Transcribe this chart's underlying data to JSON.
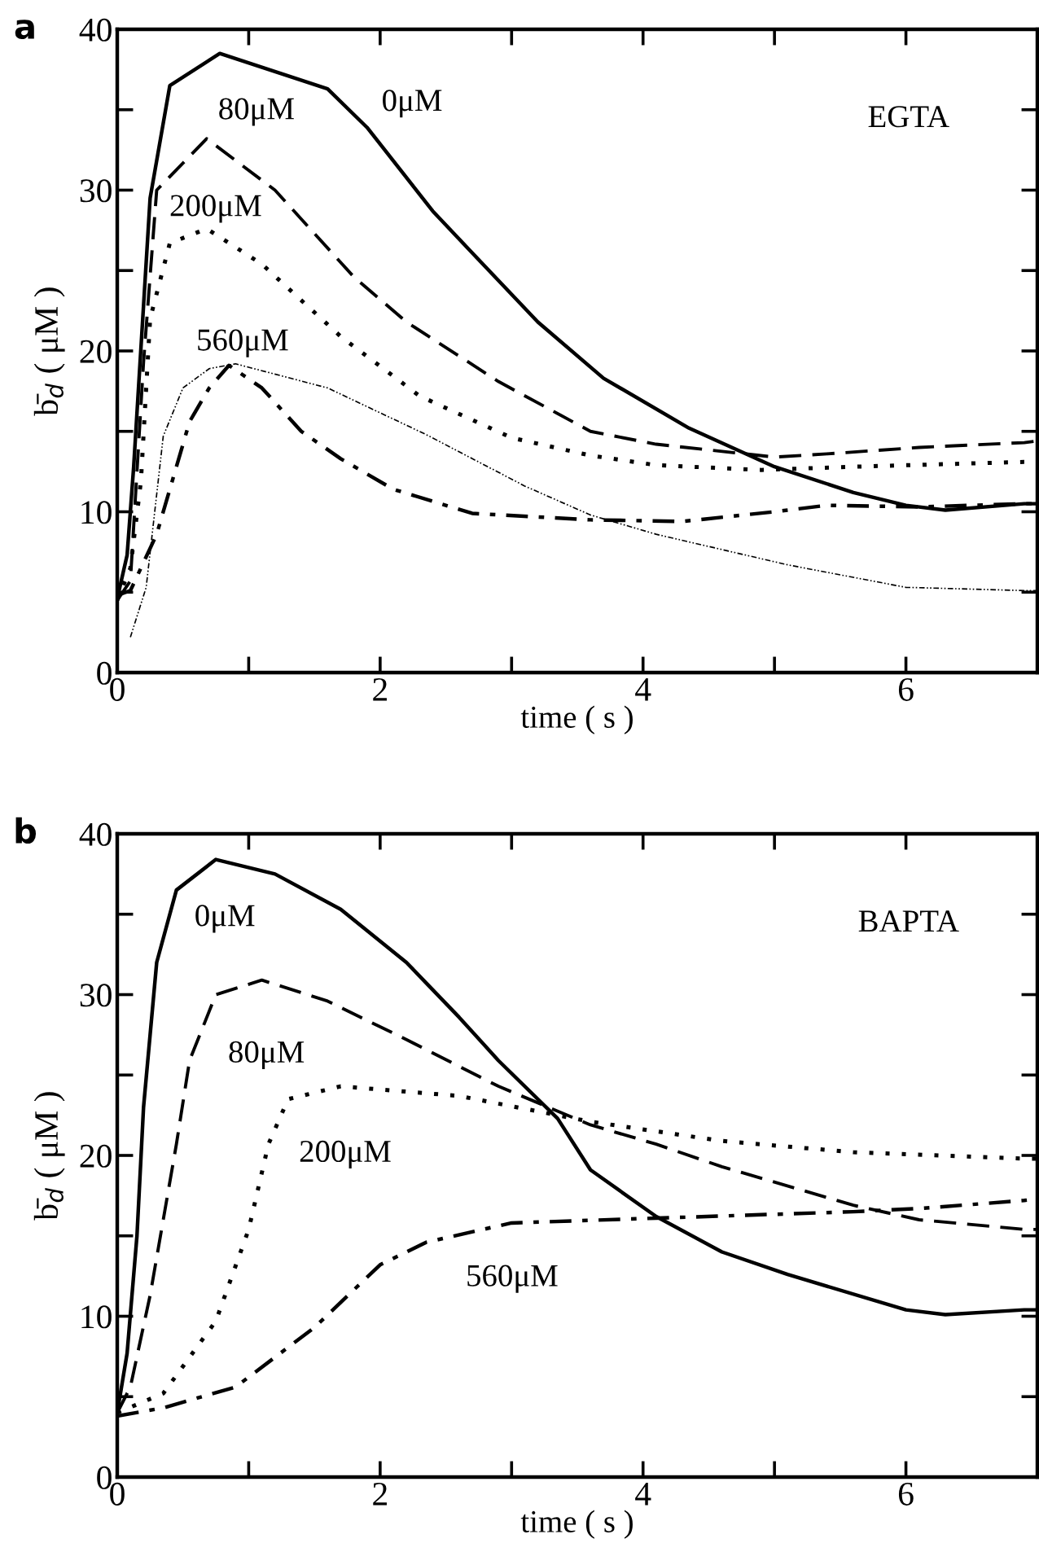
{
  "chart_data": [
    {
      "type": "line",
      "title": "a",
      "xlabel": "time ( s )",
      "ylabel": "b̄$_{d}$ ( μM )",
      "xlim": [
        0,
        7
      ],
      "ylim": [
        0,
        40
      ],
      "xticks": [
        0,
        {
          "value": 1,
          "label": null
        },
        2,
        {
          "value": 3,
          "label": null
        },
        4,
        {
          "value": 5,
          "label": null
        },
        6
      ],
      "yticks": [
        0,
        {
          "value": 5,
          "label": null
        },
        10,
        {
          "value": 15,
          "label": null
        },
        20,
        {
          "value": 25,
          "label": null
        },
        30,
        {
          "value": 35,
          "label": null
        },
        40
      ],
      "grid": false,
      "legend": false,
      "annotations": [
        "EGTA"
      ],
      "series": [
        {
          "name": "0μM",
          "color": "#000000",
          "line_style": "solid",
          "x": [
            0,
            0.075,
            0.125,
            0.25,
            0.4,
            0.78,
            1.6,
            1.9,
            2.4,
            2.7,
            3.2,
            3.7,
            4.35,
            5.0,
            5.6,
            6.0,
            6.3,
            6.9,
            7.0
          ],
          "values": [
            4.6,
            7.3,
            12.8,
            29.5,
            36.5,
            38.5,
            36.3,
            33.9,
            28.7,
            26.1,
            21.8,
            18.3,
            15.2,
            12.8,
            11.2,
            10.4,
            10.1,
            10.5,
            10.5
          ]
        },
        {
          "name": "80μM",
          "color": "#000000",
          "line_style": "dashed",
          "x": [
            0,
            0.1,
            0.2,
            0.3,
            0.68,
            1.2,
            1.8,
            2.2,
            2.9,
            3.6,
            4.1,
            5.0,
            5.4,
            6.1,
            6.9,
            7.0
          ],
          "values": [
            4.5,
            5.7,
            19.3,
            30.0,
            33.2,
            30.0,
            24.6,
            21.8,
            18.1,
            15.0,
            14.2,
            13.4,
            13.6,
            14.0,
            14.3,
            14.4
          ]
        },
        {
          "name": "200μM",
          "color": "#000000",
          "line_style": "dotted",
          "x": [
            0,
            0.1,
            0.18,
            0.25,
            0.4,
            0.68,
            1.1,
            1.7,
            2.3,
            3.0,
            3.6,
            4.1,
            4.9,
            5.6,
            6.9,
            7.0
          ],
          "values": [
            4.5,
            6.5,
            11.9,
            22.0,
            26.7,
            27.6,
            25.4,
            20.9,
            17.2,
            14.6,
            13.5,
            12.9,
            12.6,
            12.8,
            13.1,
            13.1
          ]
        },
        {
          "name": "560μM",
          "color": "#000000",
          "line_style": "dashdot",
          "x": [
            0,
            0.1,
            0.3,
            0.55,
            0.7,
            0.85,
            1.1,
            1.4,
            1.7,
            2.1,
            2.7,
            3.6,
            4.3,
            5.0,
            5.4,
            6.1,
            6.9,
            7.0
          ],
          "values": [
            4.8,
            5.1,
            8.6,
            15.6,
            17.7,
            19.1,
            17.7,
            15.0,
            13.3,
            11.4,
            9.9,
            9.5,
            9.4,
            10.0,
            10.4,
            10.3,
            10.5,
            10.5
          ]
        },
        {
          "color": "#000000",
          "line_style": "dashdotdot",
          "x": [
            0.1,
            0.22,
            0.35,
            0.5,
            0.7,
            0.9,
            1.6,
            2.35,
            3.1,
            3.6,
            4.1,
            5.1,
            6.0,
            6.9,
            7.0
          ],
          "values": [
            2.2,
            5.3,
            14.7,
            17.7,
            18.9,
            19.2,
            17.7,
            14.8,
            11.6,
            9.8,
            8.6,
            6.7,
            5.3,
            5.1,
            5.1
          ]
        }
      ]
    },
    {
      "type": "line",
      "title": "b",
      "xlabel": "time ( s )",
      "ylabel": "b̄$_{d}$ ( μM )",
      "xlim": [
        0,
        7
      ],
      "ylim": [
        0,
        40
      ],
      "xticks": [
        0,
        {
          "value": 1,
          "label": null
        },
        2,
        {
          "value": 3,
          "label": null
        },
        4,
        {
          "value": 5,
          "label": null
        },
        6
      ],
      "yticks": [
        0,
        {
          "value": 5,
          "label": null
        },
        10,
        {
          "value": 15,
          "label": null
        },
        20,
        {
          "value": 25,
          "label": null
        },
        30,
        {
          "value": 35,
          "label": null
        },
        40
      ],
      "grid": false,
      "legend": false,
      "annotations": [
        "BAPTA"
      ],
      "series": [
        {
          "name": "0μM",
          "color": "#000000",
          "line_style": "solid",
          "x": [
            0,
            0.075,
            0.15,
            0.2,
            0.3,
            0.45,
            0.75,
            1.2,
            1.7,
            2.2,
            2.6,
            2.9,
            3.35,
            3.6,
            4.1,
            4.6,
            5.1,
            6.0,
            6.3,
            6.9,
            7.0
          ],
          "values": [
            4.0,
            7.7,
            15.0,
            23.0,
            32.0,
            36.5,
            38.4,
            37.5,
            35.3,
            32.0,
            28.6,
            25.9,
            22.3,
            19.1,
            16.2,
            14.0,
            12.6,
            10.4,
            10.1,
            10.4,
            10.4
          ]
        },
        {
          "name": "80μM",
          "color": "#000000",
          "line_style": "dashed",
          "x": [
            0,
            0.1,
            0.25,
            0.45,
            0.55,
            0.75,
            1.1,
            1.6,
            2.2,
            2.9,
            3.6,
            4.1,
            4.6,
            5.6,
            6.1,
            6.9,
            7.0
          ],
          "values": [
            4.0,
            5.6,
            11.3,
            20.7,
            25.9,
            30.0,
            30.9,
            29.6,
            27.2,
            24.3,
            21.9,
            20.7,
            19.3,
            16.9,
            16.0,
            15.4,
            15.4
          ]
        },
        {
          "name": "200μM",
          "color": "#000000",
          "line_style": "dotted",
          "x": [
            0,
            0.35,
            0.75,
            1.0,
            1.15,
            1.3,
            1.7,
            2.6,
            3.6,
            4.6,
            5.6,
            6.9,
            7.0
          ],
          "values": [
            4.0,
            5.2,
            9.7,
            15.4,
            20.7,
            23.5,
            24.3,
            23.7,
            22.1,
            20.9,
            20.2,
            19.8,
            19.8
          ]
        },
        {
          "name": "560μM",
          "color": "#000000",
          "line_style": "dashdot",
          "x": [
            0,
            0.35,
            0.9,
            1.5,
            2.0,
            2.35,
            3.0,
            4.1,
            5.6,
            6.1,
            6.9,
            7.0
          ],
          "values": [
            3.8,
            4.3,
            5.6,
            9.3,
            13.2,
            14.6,
            15.8,
            16.1,
            16.5,
            16.7,
            17.2,
            17.3
          ]
        }
      ]
    }
  ]
}
